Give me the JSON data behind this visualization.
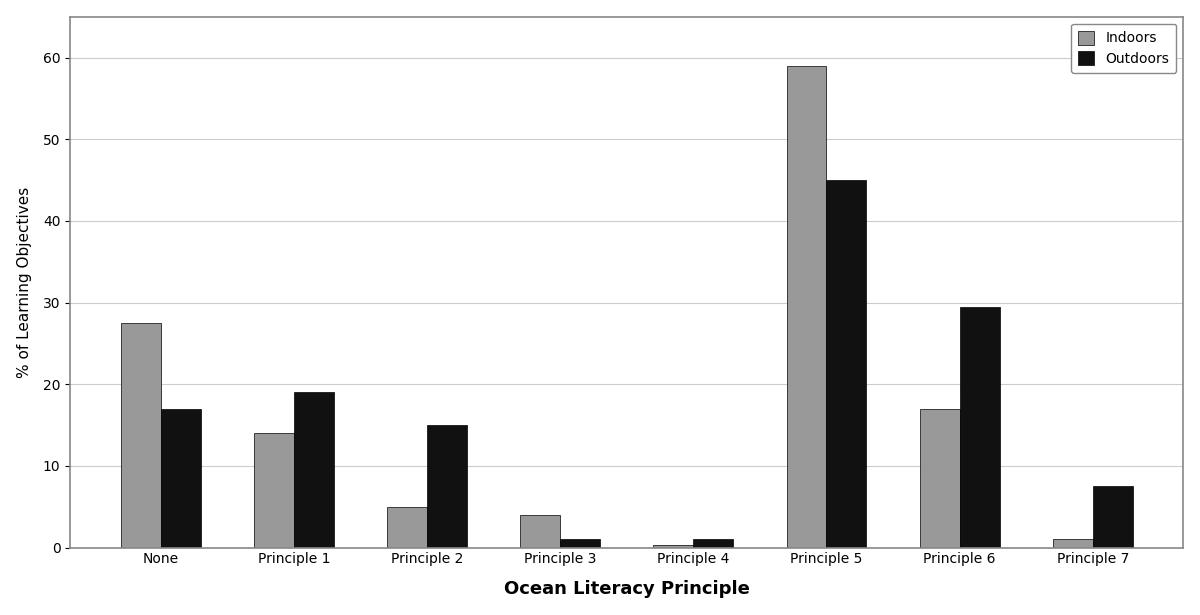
{
  "categories": [
    "None",
    "Principle 1",
    "Principle 2",
    "Principle 3",
    "Principle 4",
    "Principle 5",
    "Principle 6",
    "Principle 7"
  ],
  "indoors": [
    27.5,
    14.0,
    5.0,
    4.0,
    0.3,
    59.0,
    17.0,
    1.0
  ],
  "outdoors": [
    17.0,
    19.0,
    15.0,
    1.0,
    1.0,
    45.0,
    29.5,
    7.5
  ],
  "indoors_color": "#999999",
  "outdoors_color": "#111111",
  "xlabel": "Ocean Literacy Principle",
  "ylabel": "% of Learning Objectives",
  "ylim": [
    0,
    65
  ],
  "yticks": [
    0,
    10,
    20,
    30,
    40,
    50,
    60
  ],
  "legend_labels": [
    "Indoors",
    "Outdoors"
  ],
  "bar_width": 0.3,
  "background_color": "#ffffff",
  "grid_color": "#cccccc",
  "xlabel_fontsize": 13,
  "ylabel_fontsize": 11,
  "tick_fontsize": 10,
  "legend_fontsize": 10,
  "edge_color": "#000000",
  "outer_border_color": "#888888"
}
